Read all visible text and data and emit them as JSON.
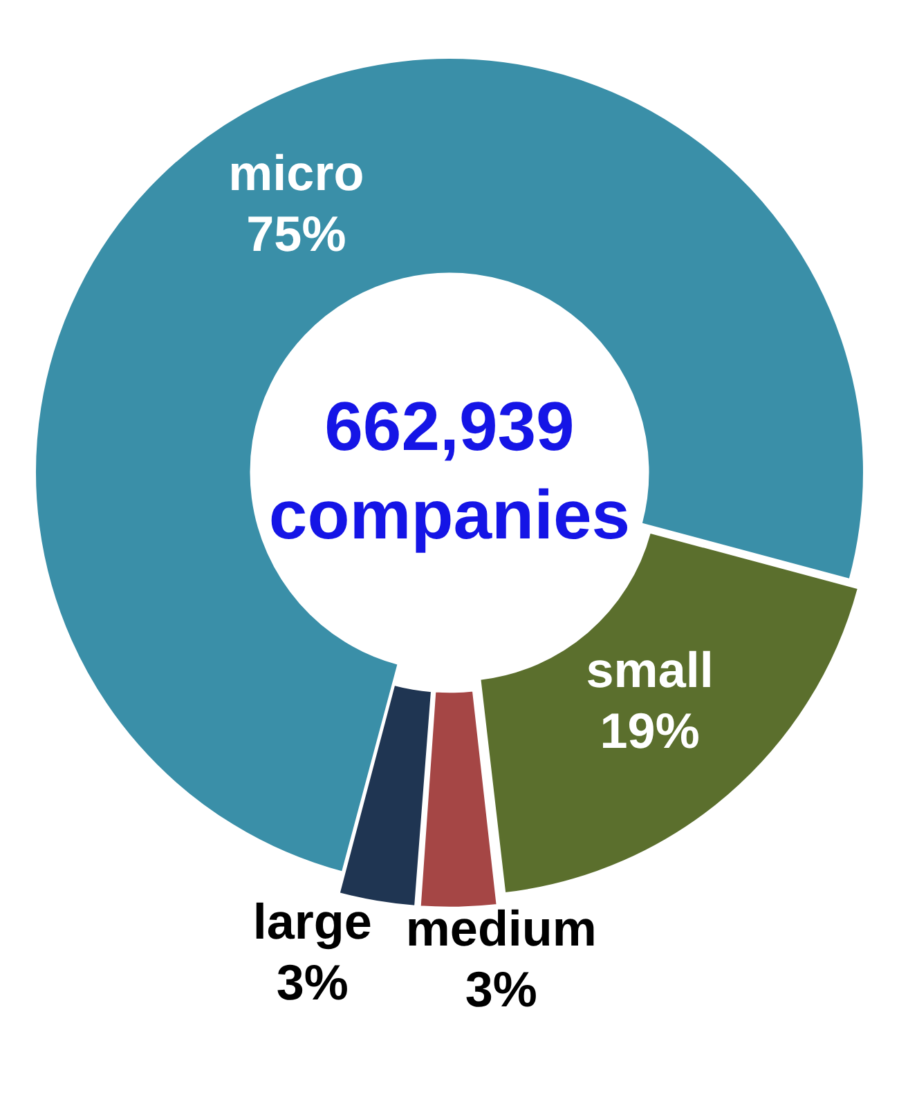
{
  "chart_data": {
    "type": "donut",
    "categories": [
      "micro",
      "small",
      "medium",
      "large"
    ],
    "values": [
      75,
      19,
      3,
      3
    ],
    "colors": [
      "#3a8fa8",
      "#5b6f2d",
      "#a54645",
      "#1f3552"
    ],
    "value_labels": [
      "75%",
      "19%",
      "3%",
      "3%"
    ],
    "legend": false,
    "annotations": [
      "662,939 companies"
    ]
  }
}
